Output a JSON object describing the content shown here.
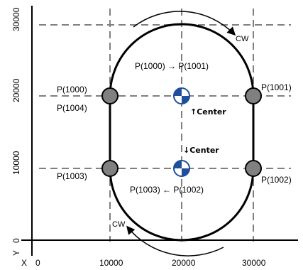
{
  "axes": {
    "x_name": "X",
    "y_name": "Y",
    "x_ticks": [
      "0",
      "10000",
      "20000",
      "30000"
    ],
    "y_ticks": [
      "0",
      "10000",
      "20000",
      "30000"
    ]
  },
  "points": {
    "p1000": "P(1000)",
    "p1004": "P(1004)",
    "p1001": "P(1001)",
    "p1002": "P(1002)",
    "p1003": "P(1003)"
  },
  "annotations": {
    "top_transition": "P(1000) → P(1001)",
    "bottom_transition": "P(1003) ← P(1002)",
    "center_upper": "↑Center",
    "center_lower": "↓Center",
    "cw_top": "CW",
    "cw_bottom": "CW"
  },
  "colors": {
    "point_fill": "#808080",
    "center_blue": "#1f4e9c",
    "grid": "#808080",
    "path": "#000000"
  }
}
